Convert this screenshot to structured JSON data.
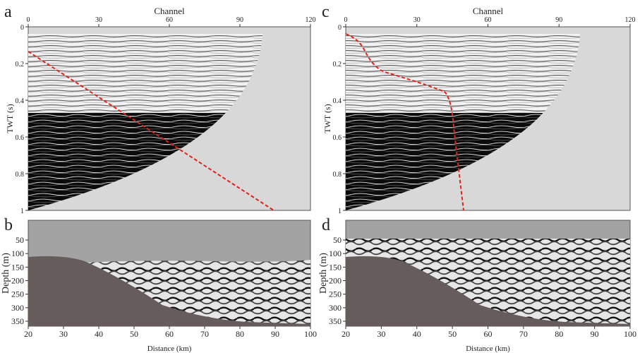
{
  "panels": [
    {
      "label": "a",
      "x_axis": {
        "title": "Channel",
        "ticks": [
          0,
          30,
          60,
          90,
          120
        ]
      },
      "y_axis": {
        "title": "TWT (s)",
        "ticks": [
          0,
          0.2,
          0.4,
          0.6,
          0.8,
          1
        ]
      }
    },
    {
      "label": "b",
      "x_axis": {
        "title": "Distance (km)",
        "ticks": [
          20,
          30,
          40,
          50,
          60,
          70,
          80,
          90,
          100
        ]
      },
      "y_axis": {
        "title": "Depth (m)",
        "ticks": [
          50,
          100,
          150,
          200,
          250,
          300,
          350
        ]
      }
    },
    {
      "label": "c",
      "x_axis": {
        "title": "Channel",
        "ticks": [
          0,
          30,
          60,
          90,
          120
        ]
      },
      "y_axis": {
        "title": "TWT (s)",
        "ticks": [
          0,
          0.2,
          0.4,
          0.6,
          0.8,
          1
        ]
      }
    },
    {
      "label": "d",
      "x_axis": {
        "title": "Distance (km)",
        "ticks": [
          20,
          30,
          40,
          50,
          60,
          70,
          80,
          90,
          100
        ]
      },
      "y_axis": {
        "title": "Depth (m)",
        "ticks": [
          50,
          100,
          150,
          200,
          250,
          300,
          350
        ]
      }
    }
  ]
}
